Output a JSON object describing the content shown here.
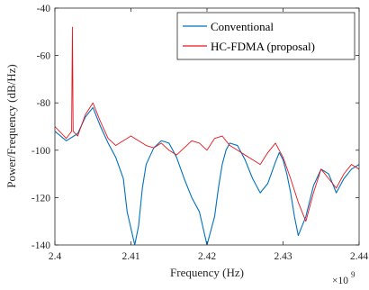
{
  "chart_data": {
    "type": "line",
    "title": "",
    "xlabel": "Frequency (Hz)",
    "ylabel": "Power/Frequency (dB/Hz)",
    "x_exponent_label": "×10",
    "x_exponent_power": "9",
    "xlim": [
      2.4,
      2.44
    ],
    "ylim": [
      -140,
      -40
    ],
    "x_ticks": [
      "2.4",
      "2.41",
      "2.42",
      "2.43",
      "2.44"
    ],
    "y_ticks": [
      "-40",
      "-60",
      "-80",
      "-100",
      "-120",
      "-140"
    ],
    "x_tick_values": [
      2.4,
      2.41,
      2.42,
      2.43,
      2.44
    ],
    "y_tick_values": [
      -40,
      -60,
      -80,
      -100,
      -120,
      -140
    ],
    "legend_position": "top-right",
    "grid": false,
    "series": [
      {
        "name": "Conventional",
        "color": "#0072BD",
        "x": [
          2.4,
          2.4015,
          2.403,
          2.404,
          2.405,
          2.406,
          2.407,
          2.408,
          2.409,
          2.4095,
          2.4105,
          2.411,
          2.4115,
          2.412,
          2.413,
          2.414,
          2.415,
          2.416,
          2.417,
          2.418,
          2.419,
          2.42,
          2.421,
          2.4215,
          2.422,
          2.4225,
          2.423,
          2.424,
          2.425,
          2.426,
          2.427,
          2.428,
          2.429,
          2.4295,
          2.43,
          2.4305,
          2.431,
          2.4315,
          2.432,
          2.433,
          2.434,
          2.435,
          2.436,
          2.437,
          2.438,
          2.439,
          2.44
        ],
        "y": [
          -92,
          -96,
          -93,
          -86,
          -82,
          -90,
          -97,
          -103,
          -112,
          -126,
          -140,
          -132,
          -116,
          -106,
          -99,
          -96,
          -97,
          -103,
          -112,
          -120,
          -126,
          -140,
          -128,
          -116,
          -106,
          -100,
          -97,
          -98,
          -104,
          -112,
          -118,
          -114,
          -105,
          -101,
          -104,
          -110,
          -118,
          -128,
          -136,
          -128,
          -115,
          -108,
          -110,
          -118,
          -112,
          -108,
          -106
        ]
      },
      {
        "name": "HC-FDMA (proposal)",
        "color": "#E8141C",
        "x": [
          2.4,
          2.4015,
          2.4022,
          2.4023,
          2.4024,
          2.403,
          2.404,
          2.405,
          2.406,
          2.407,
          2.408,
          2.409,
          2.41,
          2.411,
          2.412,
          2.413,
          2.414,
          2.415,
          2.416,
          2.417,
          2.418,
          2.419,
          2.42,
          2.421,
          2.422,
          2.423,
          2.424,
          2.425,
          2.426,
          2.427,
          2.428,
          2.429,
          2.43,
          2.431,
          2.432,
          2.433,
          2.434,
          2.435,
          2.436,
          2.437,
          2.438,
          2.439,
          2.44
        ],
        "y": [
          -90,
          -95,
          -92,
          -48,
          -92,
          -94,
          -85,
          -80,
          -88,
          -95,
          -98,
          -96,
          -94,
          -96,
          -98,
          -99,
          -97,
          -100,
          -102,
          -99,
          -96,
          -97,
          -100,
          -95,
          -94,
          -98,
          -100,
          -102,
          -104,
          -106,
          -101,
          -97,
          -103,
          -112,
          -122,
          -130,
          -118,
          -108,
          -112,
          -116,
          -110,
          -106,
          -108
        ]
      }
    ]
  }
}
